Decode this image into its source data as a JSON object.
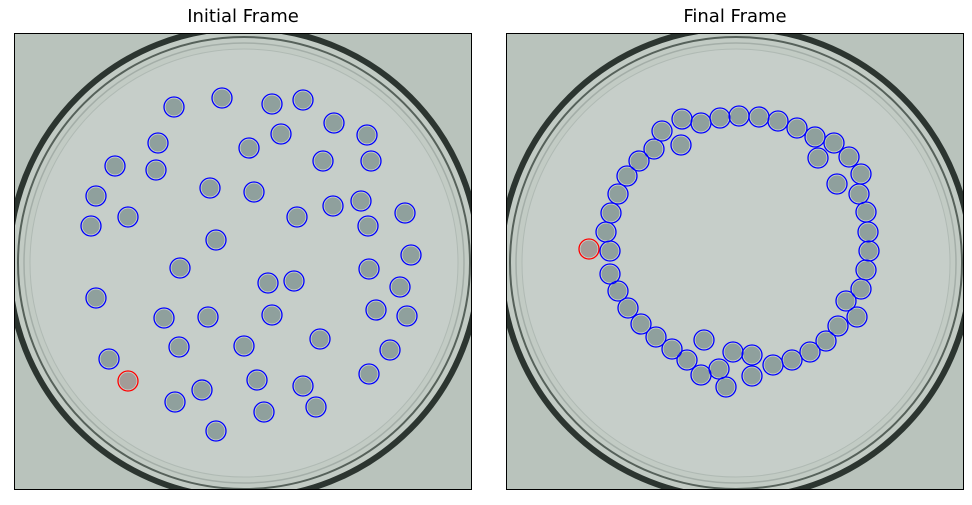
{
  "panels": [
    {
      "title": "Initial Frame",
      "highlight": [
        127,
        380
      ],
      "markers": [
        [
          173,
          106
        ],
        [
          221,
          97
        ],
        [
          271,
          103
        ],
        [
          302,
          99
        ],
        [
          157,
          142
        ],
        [
          280,
          133
        ],
        [
          333,
          122
        ],
        [
          366,
          134
        ],
        [
          114,
          165
        ],
        [
          155,
          169
        ],
        [
          248,
          147
        ],
        [
          322,
          160
        ],
        [
          370,
          160
        ],
        [
          95,
          195
        ],
        [
          209,
          187
        ],
        [
          253,
          191
        ],
        [
          332,
          205
        ],
        [
          360,
          200
        ],
        [
          90,
          225
        ],
        [
          127,
          216
        ],
        [
          296,
          216
        ],
        [
          367,
          225
        ],
        [
          404,
          212
        ],
        [
          215,
          239
        ],
        [
          410,
          254
        ],
        [
          179,
          267
        ],
        [
          267,
          282
        ],
        [
          293,
          280
        ],
        [
          368,
          268
        ],
        [
          399,
          286
        ],
        [
          95,
          297
        ],
        [
          163,
          317
        ],
        [
          207,
          316
        ],
        [
          271,
          314
        ],
        [
          375,
          309
        ],
        [
          406,
          315
        ],
        [
          178,
          346
        ],
        [
          243,
          345
        ],
        [
          319,
          338
        ],
        [
          389,
          349
        ],
        [
          108,
          358
        ],
        [
          256,
          379
        ],
        [
          302,
          385
        ],
        [
          368,
          373
        ],
        [
          174,
          401
        ],
        [
          201,
          389
        ],
        [
          263,
          411
        ],
        [
          315,
          406
        ],
        [
          215,
          430
        ]
      ]
    },
    {
      "title": "Final Frame",
      "highlight": [
        588,
        248
      ],
      "markers": [
        [
          681,
          118
        ],
        [
          700,
          122
        ],
        [
          719,
          117
        ],
        [
          738,
          115
        ],
        [
          758,
          116
        ],
        [
          777,
          120
        ],
        [
          796,
          127
        ],
        [
          814,
          136
        ],
        [
          833,
          142
        ],
        [
          848,
          156
        ],
        [
          860,
          173
        ],
        [
          858,
          193
        ],
        [
          865,
          211
        ],
        [
          867,
          231
        ],
        [
          868,
          250
        ],
        [
          865,
          269
        ],
        [
          860,
          288
        ],
        [
          856,
          316
        ],
        [
          845,
          300
        ],
        [
          837,
          325
        ],
        [
          825,
          340
        ],
        [
          809,
          351
        ],
        [
          791,
          359
        ],
        [
          772,
          364
        ],
        [
          751,
          375
        ],
        [
          751,
          354
        ],
        [
          732,
          351
        ],
        [
          718,
          368
        ],
        [
          725,
          386
        ],
        [
          700,
          374
        ],
        [
          703,
          339
        ],
        [
          686,
          359
        ],
        [
          671,
          348
        ],
        [
          655,
          336
        ],
        [
          640,
          323
        ],
        [
          627,
          307
        ],
        [
          617,
          290
        ],
        [
          609,
          273
        ],
        [
          609,
          250
        ],
        [
          605,
          231
        ],
        [
          610,
          212
        ],
        [
          617,
          193
        ],
        [
          626,
          175
        ],
        [
          638,
          160
        ],
        [
          653,
          148
        ],
        [
          661,
          130
        ],
        [
          680,
          144
        ],
        [
          817,
          157
        ],
        [
          836,
          183
        ]
      ]
    }
  ],
  "colors": {
    "marker_stroke": "#0000ff",
    "highlight_stroke": "#ff0000",
    "dish_fill": "#c2cbc4",
    "dish_rim": "#2c3530",
    "droplet_fill": "#8fa09d"
  }
}
